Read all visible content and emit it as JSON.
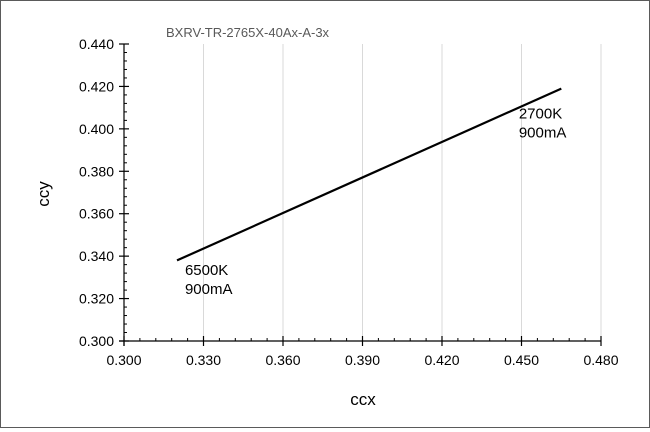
{
  "chart_data": {
    "type": "line",
    "title": "BXRV-TR-2765X-40Ax-A-3x",
    "xlabel": "ccx",
    "ylabel": "ccy",
    "xlim": [
      0.3,
      0.48
    ],
    "ylim": [
      0.3,
      0.44
    ],
    "x_ticks": [
      "0.300",
      "0.330",
      "0.360",
      "0.390",
      "0.420",
      "0.450",
      "0.480"
    ],
    "y_ticks": [
      "0.300",
      "0.320",
      "0.340",
      "0.360",
      "0.380",
      "0.400",
      "0.420",
      "0.440"
    ],
    "x_tick_values": [
      0.3,
      0.33,
      0.36,
      0.39,
      0.42,
      0.45,
      0.48
    ],
    "y_tick_values": [
      0.3,
      0.32,
      0.34,
      0.36,
      0.38,
      0.4,
      0.42,
      0.44
    ],
    "grid": "vertical",
    "series": [
      {
        "x": [
          0.32,
          0.465
        ],
        "y": [
          0.338,
          0.419
        ]
      }
    ],
    "annotations": [
      {
        "line1": "6500K",
        "line2": "900mA",
        "x": 0.323,
        "y": 0.331
      },
      {
        "line1": "2700K",
        "line2": "900mA",
        "x": 0.449,
        "y": 0.405
      }
    ],
    "colors": {
      "line": "#000000",
      "axis": "#000000",
      "grid": "#d9d9d9",
      "title": "#595959"
    }
  }
}
